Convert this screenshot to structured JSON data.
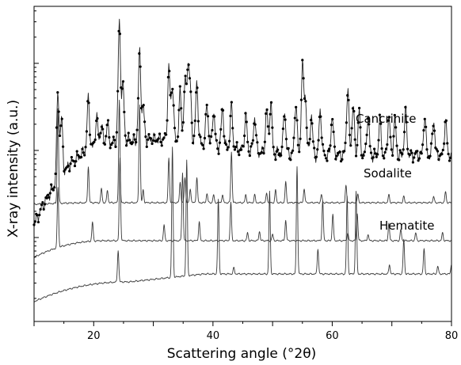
{
  "chart_data": {
    "type": "line",
    "title": "",
    "xlabel": "Scattering angle (°2θ)",
    "ylabel": "X-ray intensity (a.u.)",
    "xlim": [
      10,
      80
    ],
    "x_ticks": [
      20,
      40,
      60,
      80
    ],
    "x_tick_labels": [
      "20",
      "40",
      "60",
      "80"
    ],
    "y_scale": "log",
    "y_tick_labels_shown": false,
    "grid": false,
    "legend": "none; series identified by text labels beside each trace",
    "colors": {
      "trace": "#3a3a3a",
      "marker": "#000000",
      "axis": "#000000"
    },
    "series": [
      {
        "name": "",
        "style": "markers with connecting line (uppermost trace)",
        "baseline": 0.6,
        "peaks": [
          [
            14.0,
            0.55
          ],
          [
            14.6,
            0.35
          ],
          [
            19.1,
            0.32
          ],
          [
            20.5,
            0.18
          ],
          [
            21.3,
            0.12
          ],
          [
            22.3,
            0.12
          ],
          [
            24.3,
            0.75
          ],
          [
            24.9,
            0.35
          ],
          [
            27.7,
            0.55
          ],
          [
            28.3,
            0.2
          ],
          [
            32.6,
            0.45
          ],
          [
            33.2,
            0.35
          ],
          [
            34.5,
            0.3
          ],
          [
            35.3,
            0.35
          ],
          [
            35.8,
            0.45
          ],
          [
            36.2,
            0.3
          ],
          [
            37.3,
            0.38
          ],
          [
            39.0,
            0.26
          ],
          [
            40.1,
            0.22
          ],
          [
            41.6,
            0.25
          ],
          [
            43.1,
            0.26
          ],
          [
            45.5,
            0.22
          ],
          [
            47.0,
            0.22
          ],
          [
            49.0,
            0.27
          ],
          [
            49.7,
            0.32
          ],
          [
            52.0,
            0.28
          ],
          [
            53.9,
            0.33
          ],
          [
            55.0,
            0.55
          ],
          [
            55.5,
            0.35
          ],
          [
            56.5,
            0.25
          ],
          [
            58.0,
            0.28
          ],
          [
            60.0,
            0.25
          ],
          [
            62.6,
            0.42
          ],
          [
            63.5,
            0.32
          ],
          [
            64.5,
            0.27
          ],
          [
            66.0,
            0.25
          ],
          [
            68.0,
            0.22
          ],
          [
            69.5,
            0.25
          ],
          [
            70.5,
            0.22
          ],
          [
            72.3,
            0.28
          ],
          [
            75.5,
            0.24
          ],
          [
            77.0,
            0.22
          ],
          [
            79.0,
            0.22
          ]
        ]
      },
      {
        "name": "Cancrinite",
        "baseline": 0.3,
        "peaks": [
          [
            14.0,
            0.6
          ],
          [
            19.1,
            0.23
          ],
          [
            21.3,
            0.09
          ],
          [
            22.3,
            0.08
          ],
          [
            24.3,
            0.65
          ],
          [
            27.7,
            0.62
          ],
          [
            28.3,
            0.08
          ],
          [
            32.6,
            0.28
          ],
          [
            34.5,
            0.13
          ],
          [
            35.3,
            0.16
          ],
          [
            36.2,
            0.09
          ],
          [
            37.3,
            0.16
          ],
          [
            39.0,
            0.06
          ],
          [
            40.1,
            0.05
          ],
          [
            41.6,
            0.05
          ],
          [
            43.1,
            0.32
          ],
          [
            45.5,
            0.05
          ],
          [
            47.0,
            0.05
          ],
          [
            49.0,
            0.06
          ],
          [
            50.5,
            0.08
          ],
          [
            52.2,
            0.13
          ],
          [
            55.3,
            0.09
          ],
          [
            58.2,
            0.05
          ],
          [
            62.3,
            0.11
          ],
          [
            64.3,
            0.05
          ],
          [
            69.5,
            0.05
          ],
          [
            72.0,
            0.04
          ],
          [
            77.0,
            0.04
          ],
          [
            79.0,
            0.07
          ]
        ]
      },
      {
        "name": "Sodalite",
        "baseline": 0.06,
        "peaks": [
          [
            14.0,
            0.38
          ],
          [
            19.8,
            0.12
          ],
          [
            24.4,
            0.52
          ],
          [
            31.8,
            0.1
          ],
          [
            34.9,
            0.43
          ],
          [
            37.7,
            0.12
          ],
          [
            43.0,
            0.24
          ],
          [
            45.8,
            0.05
          ],
          [
            47.8,
            0.06
          ],
          [
            50.0,
            0.04
          ],
          [
            52.2,
            0.13
          ],
          [
            58.4,
            0.25
          ],
          [
            60.1,
            0.17
          ],
          [
            62.6,
            0.05
          ],
          [
            64.2,
            0.17
          ],
          [
            66.0,
            0.04
          ],
          [
            69.5,
            0.11
          ],
          [
            71.5,
            0.07
          ],
          [
            74.0,
            0.05
          ],
          [
            78.5,
            0.05
          ]
        ]
      },
      {
        "name": "Hematite",
        "baseline": -0.2,
        "peaks": [
          [
            24.1,
            0.2
          ],
          [
            33.2,
            0.82
          ],
          [
            35.6,
            0.73
          ],
          [
            40.9,
            0.47
          ],
          [
            43.5,
            0.04
          ],
          [
            49.5,
            0.52
          ],
          [
            54.1,
            0.68
          ],
          [
            57.6,
            0.16
          ],
          [
            62.5,
            0.49
          ],
          [
            64.0,
            0.52
          ],
          [
            69.6,
            0.06
          ],
          [
            72.0,
            0.22
          ],
          [
            75.4,
            0.16
          ],
          [
            77.7,
            0.05
          ],
          [
            80.0,
            0.06
          ]
        ]
      }
    ]
  }
}
